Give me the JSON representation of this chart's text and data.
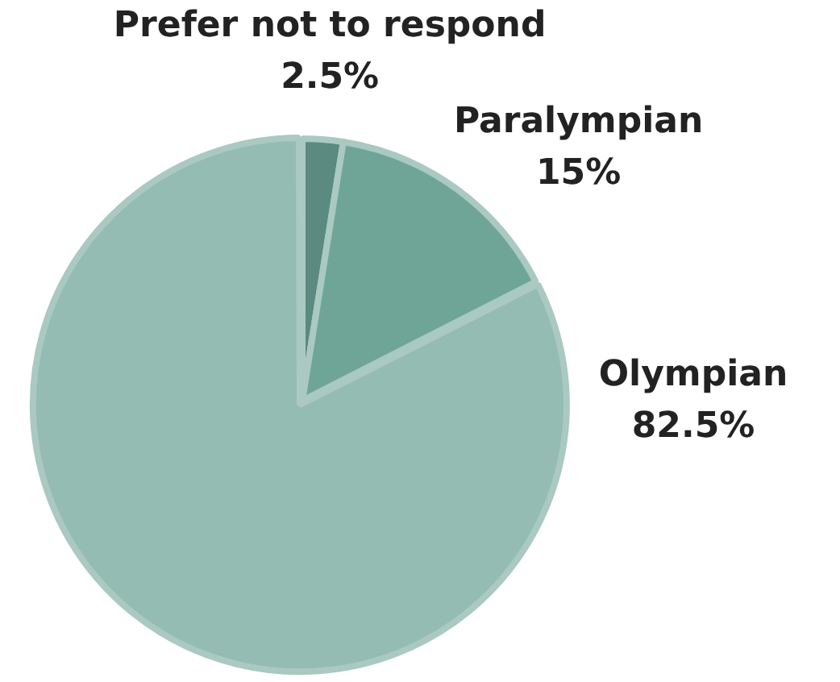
{
  "chart_data": {
    "type": "pie",
    "categories": [
      "Prefer not to respond",
      "Paralympian",
      "Olympian"
    ],
    "values": [
      2.5,
      15,
      82.5
    ],
    "colors": [
      "#5b8a80",
      "#6fa597",
      "#94bcb2"
    ],
    "value_labels": [
      "2.5%",
      "15%",
      "82.5%"
    ]
  }
}
